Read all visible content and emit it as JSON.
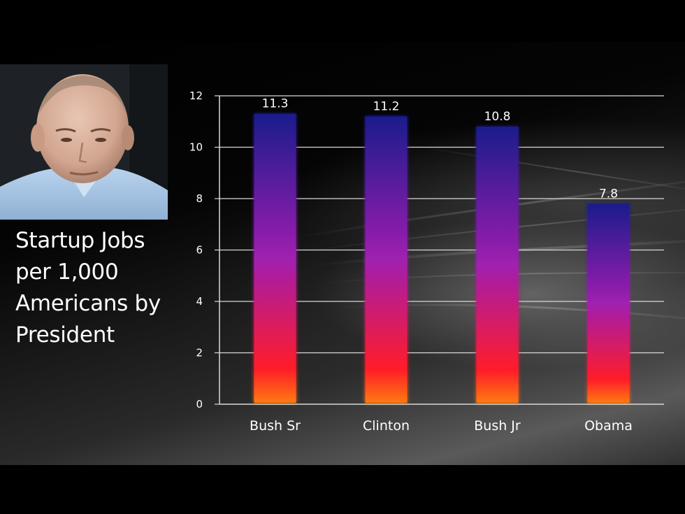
{
  "slide": {
    "title": "Startup Jobs per 1,000 Americans by President"
  },
  "colors": {
    "bar_top": "#1a1a8c",
    "bar_mid": "#a020b0",
    "bar_low": "#ff1a2a",
    "bar_base": "#ff7a10",
    "gridline": "#d9d9d9",
    "text": "#ffffff"
  },
  "chart_data": {
    "type": "bar",
    "categories": [
      "Bush Sr",
      "Clinton",
      "Bush Jr",
      "Obama"
    ],
    "values": [
      11.3,
      11.2,
      10.8,
      7.8
    ],
    "data_labels": [
      "11.3",
      "11.2",
      "10.8",
      "7.8"
    ],
    "ylim": [
      0,
      12
    ],
    "yticks": [
      0,
      2,
      4,
      6,
      8,
      10,
      12
    ],
    "grid": true,
    "legend": "none"
  }
}
